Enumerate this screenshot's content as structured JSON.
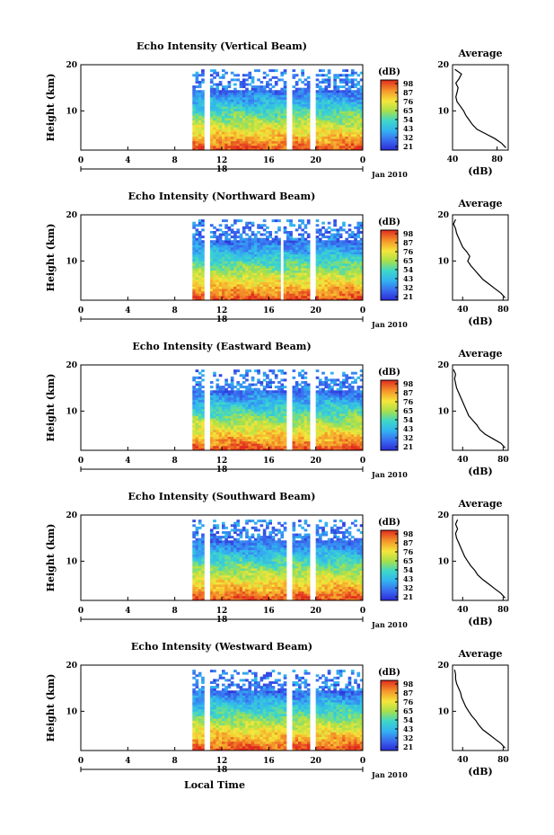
{
  "chart_data": [
    {
      "type": "heatmap",
      "title": "Echo Intensity (Vertical Beam)",
      "ylabel": "Height (km)",
      "x_ticks": [
        "0",
        "4",
        "8",
        "12",
        "16",
        "20",
        "0"
      ],
      "y_ticks": [
        "20",
        "10"
      ],
      "xlim": [
        0,
        24
      ],
      "ylim": [
        1.5,
        20
      ],
      "date_marker": "18",
      "date_label": "Jan 2010",
      "colorbar": {
        "unit": "(dB)",
        "ticks": [
          "98",
          "87",
          "76",
          "65",
          "54",
          "43",
          "32",
          "21"
        ],
        "range": [
          21,
          98
        ]
      },
      "data_start_hour": 9.5,
      "gaps": [
        [
          10.5,
          11.0
        ],
        [
          17.5,
          18.0
        ],
        [
          19.5,
          20.0
        ]
      ],
      "average_profile": {
        "title": "Average",
        "xlabel": "(dB)",
        "x_ticks": [
          "40",
          "80"
        ],
        "y_ticks": [
          "20",
          "10"
        ],
        "xlim": [
          40,
          90
        ],
        "ylim": [
          1.5,
          20
        ],
        "points": [
          [
            88,
            2
          ],
          [
            84,
            3
          ],
          [
            78,
            4
          ],
          [
            70,
            5
          ],
          [
            62,
            6
          ],
          [
            58,
            7
          ],
          [
            55,
            8
          ],
          [
            52,
            9
          ],
          [
            50,
            10
          ],
          [
            47,
            11
          ],
          [
            44,
            12
          ],
          [
            43,
            13
          ],
          [
            44,
            14
          ],
          [
            45,
            15
          ],
          [
            43,
            16
          ],
          [
            46,
            17
          ],
          [
            48,
            18
          ],
          [
            42,
            19
          ]
        ]
      }
    },
    {
      "type": "heatmap",
      "title": "Echo Intensity (Northward Beam)",
      "ylabel": "Height (km)",
      "x_ticks": [
        "0",
        "4",
        "8",
        "12",
        "16",
        "20",
        "0"
      ],
      "y_ticks": [
        "20",
        "10"
      ],
      "xlim": [
        0,
        24
      ],
      "ylim": [
        1.5,
        20
      ],
      "date_marker": "18",
      "date_label": "Jan 2010",
      "colorbar": {
        "unit": "(dB)",
        "ticks": [
          "98",
          "87",
          "76",
          "65",
          "54",
          "43",
          "32",
          "21"
        ],
        "range": [
          21,
          98
        ]
      },
      "data_start_hour": 9.5,
      "gaps": [
        [
          10.5,
          11.0
        ],
        [
          16.8,
          17.2
        ],
        [
          19.5,
          20.0
        ]
      ],
      "average_profile": {
        "title": "Average",
        "xlabel": "(dB)",
        "x_ticks": [
          "40",
          "80"
        ],
        "y_ticks": [
          "20",
          "10"
        ],
        "xlim": [
          30,
          85
        ],
        "ylim": [
          1.5,
          20
        ],
        "points": [
          [
            82,
            2
          ],
          [
            78,
            3
          ],
          [
            72,
            4
          ],
          [
            66,
            5
          ],
          [
            60,
            6
          ],
          [
            56,
            7
          ],
          [
            52,
            8
          ],
          [
            48,
            9
          ],
          [
            45,
            10
          ],
          [
            47,
            11
          ],
          [
            44,
            12
          ],
          [
            40,
            13
          ],
          [
            38,
            14
          ],
          [
            36,
            15
          ],
          [
            34,
            16
          ],
          [
            33,
            17
          ],
          [
            31,
            18
          ],
          [
            33,
            19
          ]
        ]
      }
    },
    {
      "type": "heatmap",
      "title": "Echo Intensity (Eastward Beam)",
      "ylabel": "Height (km)",
      "x_ticks": [
        "0",
        "4",
        "8",
        "12",
        "16",
        "20",
        "0"
      ],
      "y_ticks": [
        "20",
        "10"
      ],
      "xlim": [
        0,
        24
      ],
      "ylim": [
        1.5,
        20
      ],
      "date_marker": "18",
      "date_label": "Jan 2010",
      "colorbar": {
        "unit": "(dB)",
        "ticks": [
          "98",
          "87",
          "76",
          "65",
          "54",
          "43",
          "32",
          "21"
        ],
        "range": [
          21,
          98
        ]
      },
      "data_start_hour": 9.5,
      "gaps": [
        [
          10.5,
          11.0
        ],
        [
          17.5,
          18.0
        ],
        [
          19.5,
          20.0
        ]
      ],
      "average_profile": {
        "title": "Average",
        "xlabel": "(dB)",
        "x_ticks": [
          "40",
          "80"
        ],
        "y_ticks": [
          "20",
          "10"
        ],
        "xlim": [
          30,
          85
        ],
        "ylim": [
          1.5,
          20
        ],
        "points": [
          [
            82,
            2
          ],
          [
            78,
            3
          ],
          [
            70,
            4
          ],
          [
            62,
            5
          ],
          [
            57,
            6
          ],
          [
            54,
            7
          ],
          [
            50,
            8
          ],
          [
            46,
            9
          ],
          [
            44,
            10
          ],
          [
            42,
            11
          ],
          [
            40,
            12
          ],
          [
            38,
            13
          ],
          [
            36,
            14
          ],
          [
            34,
            15
          ],
          [
            33,
            16
          ],
          [
            32,
            17
          ],
          [
            33,
            18
          ],
          [
            31,
            19
          ]
        ]
      }
    },
    {
      "type": "heatmap",
      "title": "Echo Intensity (Southward Beam)",
      "ylabel": "Height (km)",
      "x_ticks": [
        "0",
        "4",
        "8",
        "12",
        "16",
        "20",
        "0"
      ],
      "y_ticks": [
        "20",
        "10"
      ],
      "xlim": [
        0,
        24
      ],
      "ylim": [
        1.5,
        20
      ],
      "date_marker": "18",
      "date_label": "Jan 2010",
      "colorbar": {
        "unit": "(dB)",
        "ticks": [
          "98",
          "87",
          "76",
          "65",
          "54",
          "43",
          "32",
          "21"
        ],
        "range": [
          21,
          98
        ]
      },
      "data_start_hour": 9.5,
      "gaps": [
        [
          10.5,
          11.0
        ],
        [
          17.5,
          18.0
        ],
        [
          19.5,
          20.0
        ]
      ],
      "average_profile": {
        "title": "Average",
        "xlabel": "(dB)",
        "x_ticks": [
          "40",
          "80"
        ],
        "y_ticks": [
          "20",
          "10"
        ],
        "xlim": [
          30,
          85
        ],
        "ylim": [
          1.5,
          20
        ],
        "points": [
          [
            82,
            2
          ],
          [
            78,
            3
          ],
          [
            72,
            4
          ],
          [
            66,
            5
          ],
          [
            60,
            6
          ],
          [
            55,
            7
          ],
          [
            52,
            8
          ],
          [
            48,
            9
          ],
          [
            45,
            10
          ],
          [
            42,
            11
          ],
          [
            40,
            12
          ],
          [
            38,
            13
          ],
          [
            36,
            14
          ],
          [
            34,
            15
          ],
          [
            33,
            16
          ],
          [
            35,
            17
          ],
          [
            33,
            18
          ],
          [
            35,
            19
          ]
        ]
      }
    },
    {
      "type": "heatmap",
      "title": "Echo Intensity (Westward Beam)",
      "ylabel": "Height (km)",
      "xlabel": "Local Time",
      "x_ticks": [
        "0",
        "4",
        "8",
        "12",
        "16",
        "20",
        "0"
      ],
      "y_ticks": [
        "20",
        "10"
      ],
      "xlim": [
        0,
        24
      ],
      "ylim": [
        1.5,
        20
      ],
      "date_marker": "18",
      "date_label": "Jan 2010",
      "colorbar": {
        "unit": "(dB)",
        "ticks": [
          "98",
          "87",
          "76",
          "65",
          "54",
          "43",
          "32",
          "21"
        ],
        "range": [
          21,
          98
        ]
      },
      "data_start_hour": 9.5,
      "gaps": [
        [
          10.5,
          11.0
        ],
        [
          17.5,
          18.0
        ],
        [
          19.5,
          20.0
        ]
      ],
      "average_profile": {
        "title": "Average",
        "xlabel": "(dB)",
        "x_ticks": [
          "40",
          "80"
        ],
        "y_ticks": [
          "20",
          "10"
        ],
        "xlim": [
          30,
          85
        ],
        "ylim": [
          1.5,
          20
        ],
        "points": [
          [
            82,
            2
          ],
          [
            78,
            3
          ],
          [
            72,
            4
          ],
          [
            66,
            5
          ],
          [
            60,
            6
          ],
          [
            56,
            7
          ],
          [
            53,
            8
          ],
          [
            49,
            9
          ],
          [
            46,
            10
          ],
          [
            43,
            11
          ],
          [
            41,
            12
          ],
          [
            39,
            13
          ],
          [
            38,
            14
          ],
          [
            36,
            15
          ],
          [
            34,
            16
          ],
          [
            33,
            17
          ],
          [
            33,
            18
          ],
          [
            32,
            19
          ]
        ]
      }
    }
  ]
}
